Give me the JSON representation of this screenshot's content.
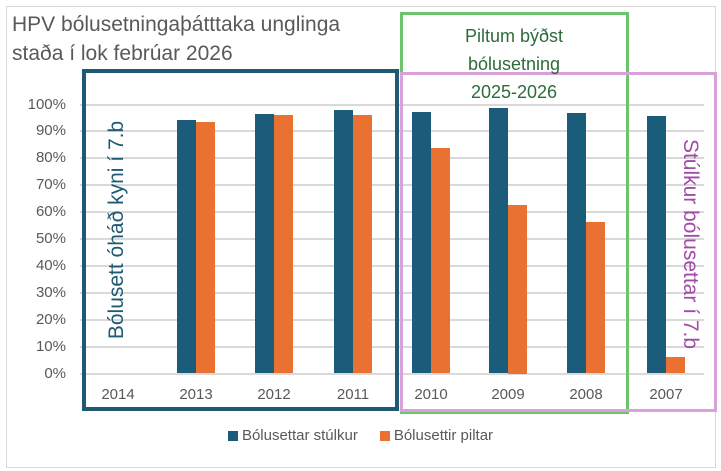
{
  "chart_data": {
    "type": "bar",
    "title": "HPV bólusetningaþátttaka unglinga staða í lok febrúar 2026",
    "title_lines": [
      "HPV bólusetningaþátttaka unglinga",
      "staða í lok febrúar 2026"
    ],
    "xlabel": "",
    "ylabel": "",
    "ylim": [
      0,
      100
    ],
    "yticks": [
      "0%",
      "10%",
      "20%",
      "30%",
      "40%",
      "50%",
      "60%",
      "70%",
      "80%",
      "90%",
      "100%"
    ],
    "grid": true,
    "legend_position": "bottom",
    "categories": [
      "2014",
      "2013",
      "2012",
      "2011",
      "2010",
      "2009",
      "2008",
      "2007"
    ],
    "series": [
      {
        "name": "Bólusettar stúlkur",
        "color": "#1a5c7a",
        "values": [
          null,
          94.2,
          96.5,
          98.0,
          97.2,
          98.7,
          97.0,
          95.8
        ]
      },
      {
        "name": "Bólusettir piltar",
        "color": "#e97132",
        "values": [
          null,
          93.5,
          96.0,
          96.0,
          84.0,
          62.5,
          56.5,
          6.0
        ]
      }
    ],
    "annotations": [
      {
        "text": "Bólusett óháð kyni í 7.b",
        "color": "#1f5a73",
        "orientation": "vertical-up",
        "box_color": "#1f5a73",
        "covers": [
          "2014",
          "2013",
          "2012",
          "2011"
        ]
      },
      {
        "text": "Piltum býðst bólusetning 2025-2026",
        "lines": [
          "Piltum býðst",
          "bólusetning",
          "2025-2026"
        ],
        "color": "#2e6b3a",
        "box_color": "#6cc56c",
        "covers": [
          "2010",
          "2009",
          "2008"
        ]
      },
      {
        "text": "Stúlkur bólusettar í 7.b",
        "color": "#a24aa8",
        "orientation": "vertical-down",
        "box_color": "#d9a1d9",
        "covers": [
          "2010",
          "2009",
          "2008",
          "2007"
        ]
      }
    ]
  },
  "legend": [
    {
      "label": "Bólusettar stúlkur",
      "color": "#1a5c7a"
    },
    {
      "label": "Bólusettir piltar",
      "color": "#e97132"
    }
  ]
}
